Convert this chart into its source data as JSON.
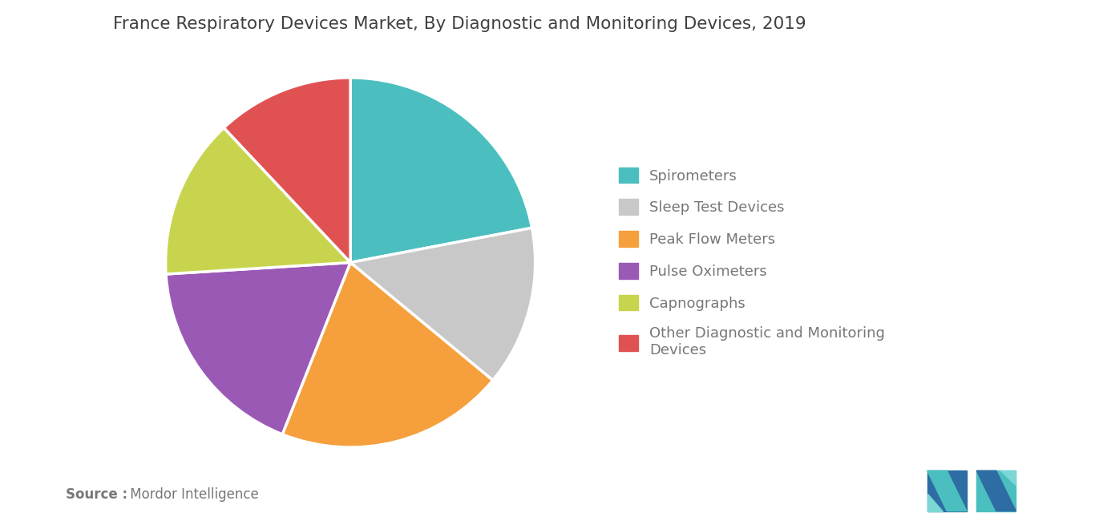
{
  "title": "France Respiratory Devices Market, By Diagnostic and Monitoring Devices, 2019",
  "legend_labels": [
    "Spirometers",
    "Sleep Test Devices",
    "Peak Flow Meters",
    "Pulse Oximeters",
    "Capnographs",
    "Other Diagnostic and Monitoring\nDevices"
  ],
  "values": [
    22,
    14,
    20,
    18,
    14,
    12
  ],
  "colors": [
    "#4BBFBF",
    "#C8C8C8",
    "#F5A03C",
    "#9B59B6",
    "#C8D44E",
    "#E05252"
  ],
  "background_color": "#FFFFFF",
  "title_fontsize": 15.5,
  "title_color": "#404040",
  "legend_fontsize": 13,
  "legend_text_color": "#777777",
  "source_bold": "Source :",
  "source_normal": " Mordor Intelligence",
  "startangle": 90,
  "logo_teal": "#4BBFBF",
  "logo_blue": "#2E6DA4",
  "logo_light_teal": "#7DD6D6"
}
